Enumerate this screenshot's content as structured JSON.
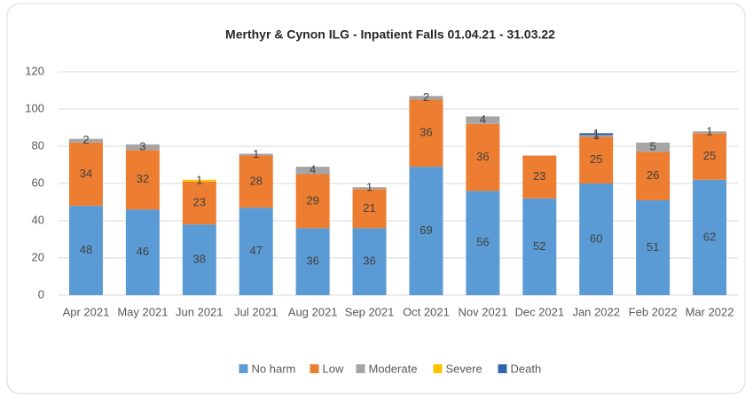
{
  "chart_data": {
    "type": "stacked_bar",
    "title": "Merthyr & Cynon ILG - Inpatient Falls 01.04.21 - 31.03.22",
    "categories": [
      "Apr 2021",
      "May 2021",
      "Jun 2021",
      "Jul 2021",
      "Aug 2021",
      "Sep 2021",
      "Oct 2021",
      "Nov 2021",
      "Dec 2021",
      "Jan 2022",
      "Feb 2022",
      "Mar 2022"
    ],
    "series": [
      {
        "name": "No harm",
        "color": "#5b9bd5",
        "values": [
          48,
          46,
          38,
          47,
          36,
          36,
          69,
          56,
          52,
          60,
          51,
          62
        ]
      },
      {
        "name": "Low",
        "color": "#ed7d31",
        "values": [
          34,
          32,
          23,
          28,
          29,
          21,
          36,
          36,
          23,
          25,
          26,
          25
        ]
      },
      {
        "name": "Moderate",
        "color": "#a5a5a5",
        "values": [
          2,
          3,
          null,
          1,
          4,
          1,
          2,
          4,
          null,
          1,
          5,
          1
        ]
      },
      {
        "name": "Severe",
        "color": "#ffc000",
        "values": [
          null,
          null,
          1,
          null,
          null,
          null,
          null,
          null,
          null,
          null,
          null,
          null
        ]
      },
      {
        "name": "Death",
        "color": "#2e64b0",
        "values": [
          null,
          null,
          null,
          null,
          null,
          null,
          null,
          null,
          null,
          1,
          null,
          null
        ]
      }
    ],
    "ylim": [
      0,
      120
    ],
    "yticks": [
      0,
      20,
      40,
      60,
      80,
      100,
      120
    ],
    "grid": true,
    "legend": "bottom"
  }
}
